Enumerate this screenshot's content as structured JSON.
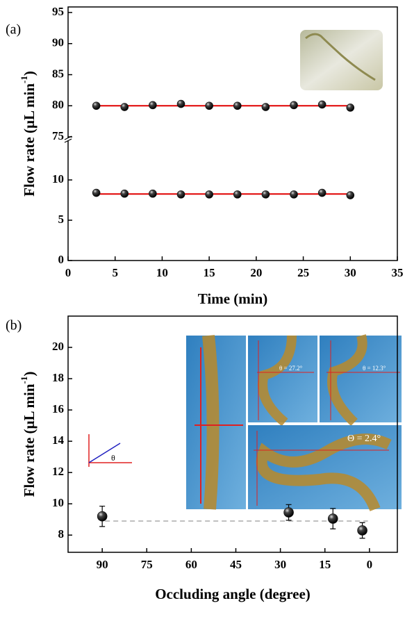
{
  "chart_data": [
    {
      "type": "scatter",
      "panel_label": "(a)",
      "xlabel": "Time (min)",
      "ylabel": "Flow rate (μL min",
      "ylabel_sup": "-1",
      "ylabel_end": ")",
      "xlim": [
        0,
        35
      ],
      "xticks": [
        0,
        5,
        10,
        15,
        20,
        25,
        30,
        35
      ],
      "y_segments": [
        {
          "ylim": [
            0,
            15
          ],
          "yticks": [
            0,
            5,
            10
          ]
        },
        {
          "ylim": [
            75,
            95
          ],
          "yticks": [
            75,
            80,
            85,
            90,
            95
          ]
        }
      ],
      "x": [
        3,
        6,
        9,
        12,
        15,
        18,
        21,
        24,
        27,
        30
      ],
      "series": [
        {
          "color": "#111111",
          "values": [
            80.0,
            79.8,
            80.1,
            80.3,
            80.0,
            80.0,
            79.8,
            80.1,
            80.2,
            79.7
          ]
        },
        {
          "color": "#111111",
          "values": [
            8.4,
            8.3,
            8.3,
            8.2,
            8.2,
            8.2,
            8.2,
            8.2,
            8.4,
            8.1
          ]
        }
      ],
      "fit_lines": [
        {
          "color": "#e00000",
          "x": [
            3,
            30
          ],
          "values": [
            80.0,
            80.0
          ]
        },
        {
          "color": "#e00000",
          "x": [
            3,
            30
          ],
          "values": [
            8.25,
            8.25
          ]
        }
      ]
    },
    {
      "type": "errorbar",
      "panel_label": "(b)",
      "xlabel": "Occluding angle (degree)",
      "ylabel": "Flow rate (μL min",
      "ylabel_sup": "-1",
      "ylabel_end": ")",
      "xlim": [
        101.5,
        -9.4
      ],
      "xticks": [
        90,
        75,
        60,
        45,
        30,
        15,
        0
      ],
      "ylim": [
        6.9,
        22
      ],
      "yticks": [
        8,
        10,
        12,
        14,
        16,
        18,
        20
      ],
      "x": [
        90,
        27.2,
        12.3,
        2.4
      ],
      "values": [
        9.2,
        9.45,
        9.05,
        8.3
      ],
      "errors": [
        0.65,
        0.5,
        0.65,
        0.5
      ],
      "color": "#111111",
      "reference_line": 8.9,
      "reference_color": "#aaaaaa",
      "annotations": [
        "θ = 27.2°",
        "θ = 12.3°",
        "Θ = 2.4°",
        "θ"
      ]
    }
  ]
}
